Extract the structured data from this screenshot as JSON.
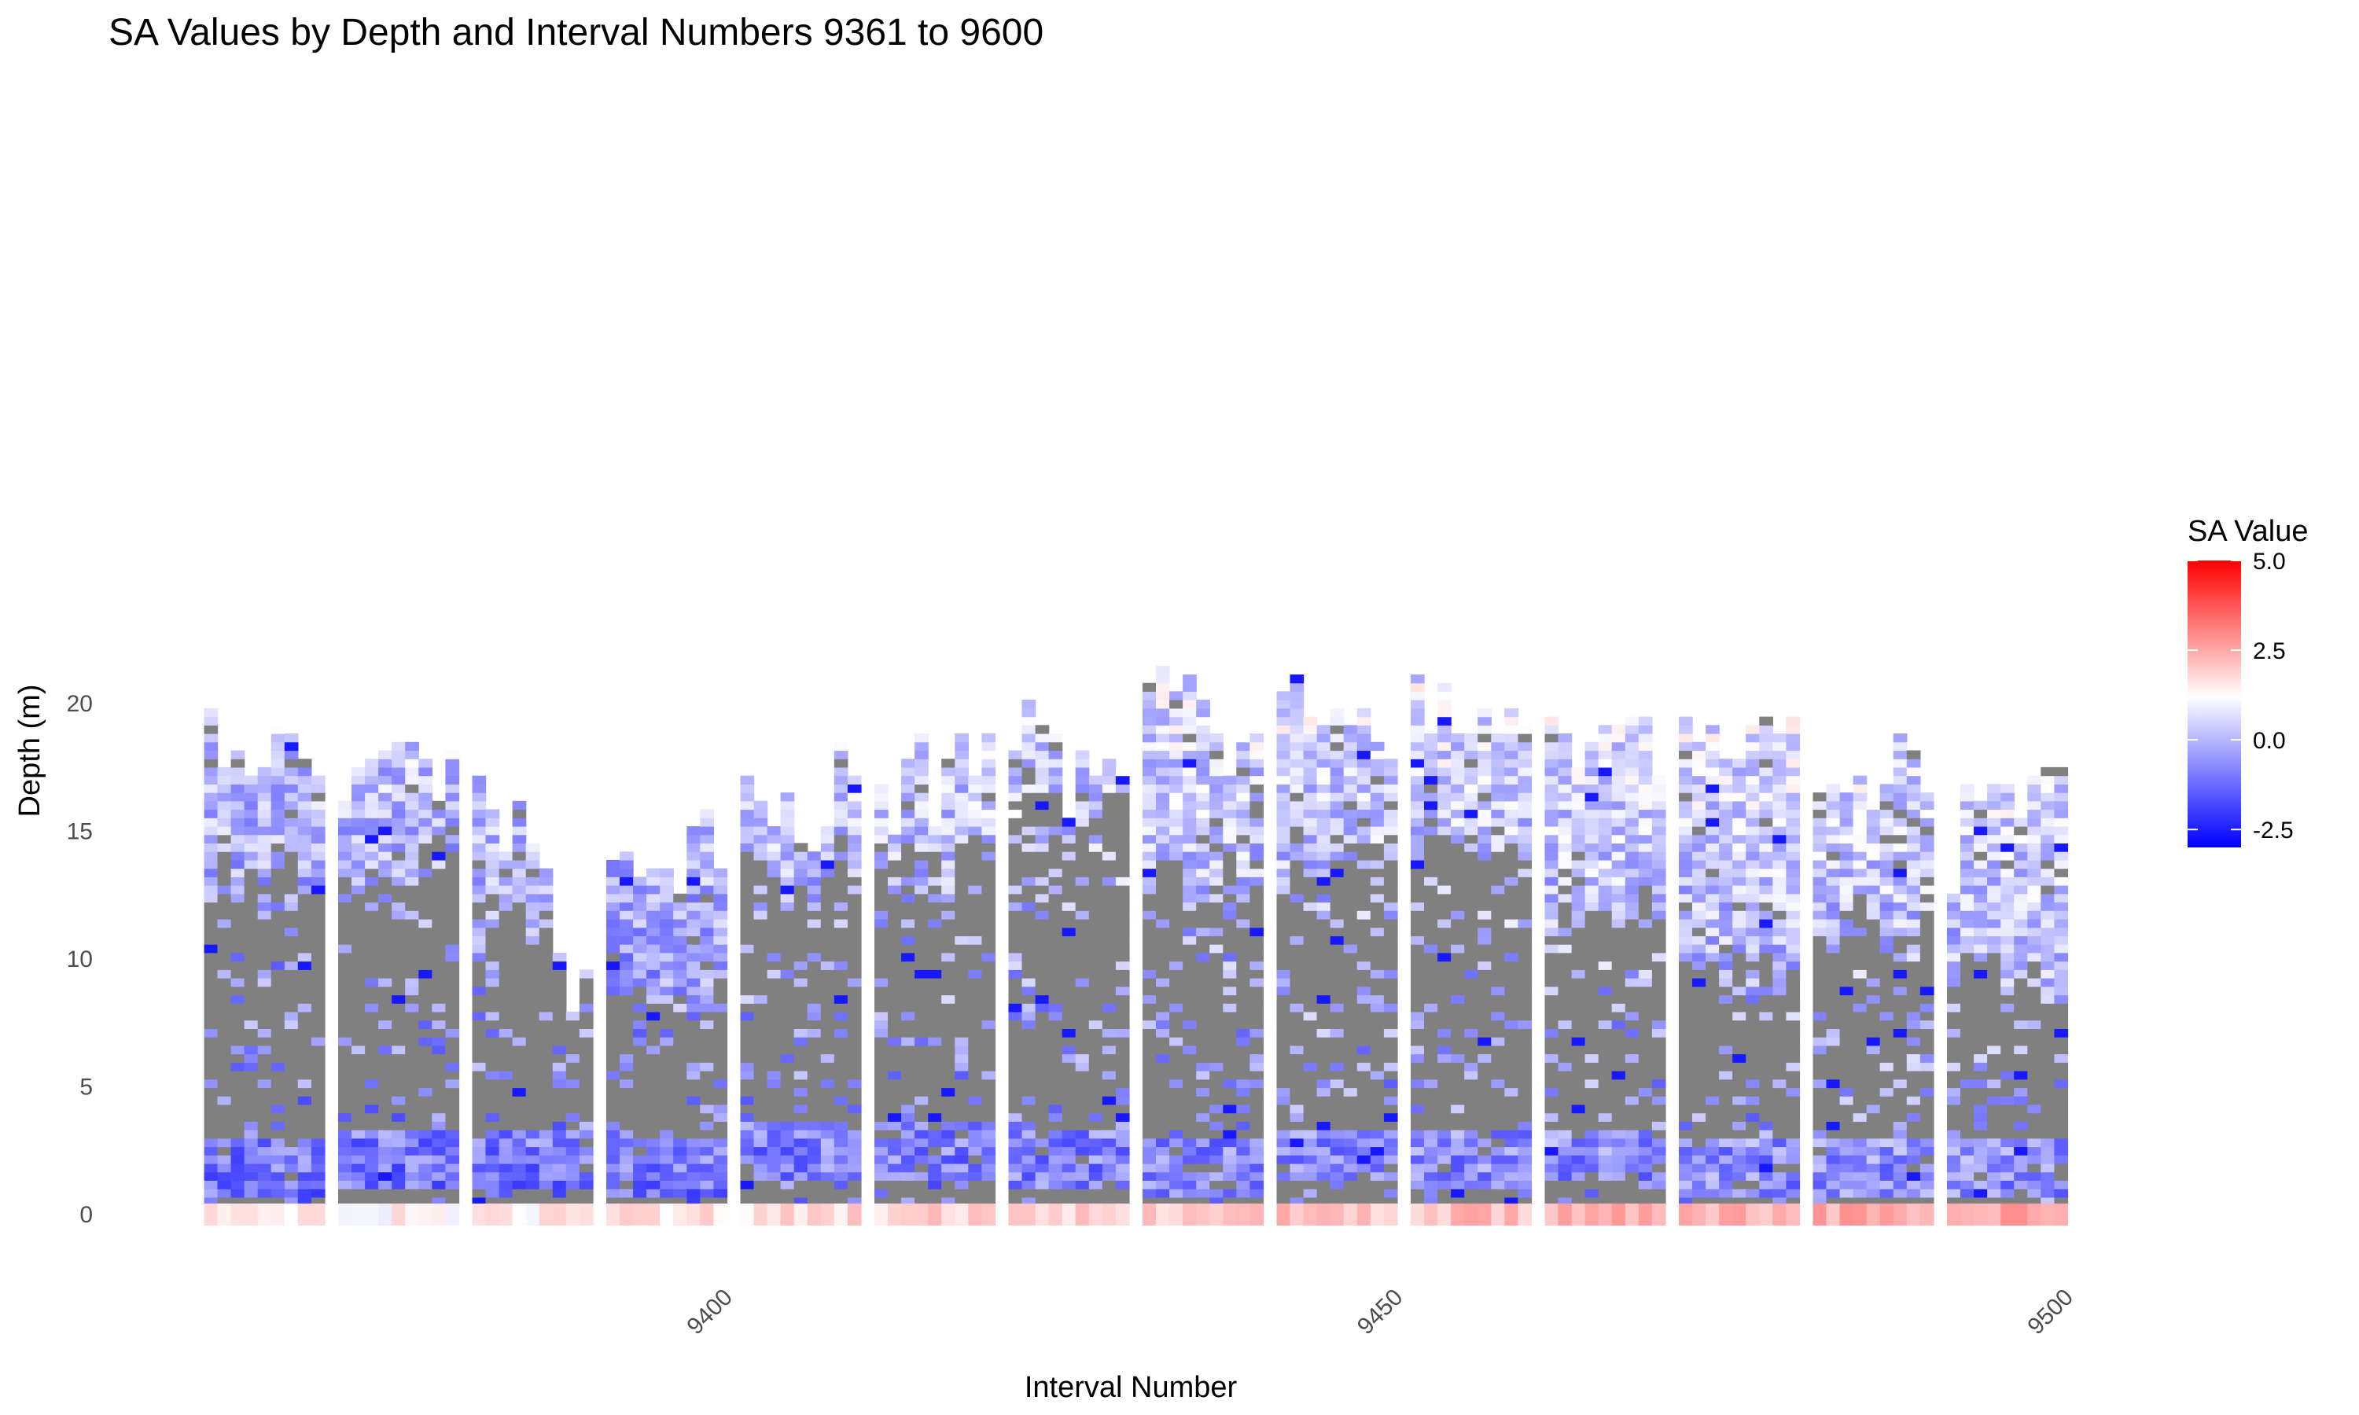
{
  "chart_data": {
    "type": "heatmap",
    "title": "SA Values by Depth and Interval Numbers 9361 to 9600",
    "xlabel": "Interval Number",
    "ylabel": "Depth (m)",
    "x_ticks": [
      9400,
      9450,
      9500
    ],
    "y_ticks": [
      0,
      5,
      10,
      15,
      20
    ],
    "xlim": [
      9361,
      9499
    ],
    "ylim": [
      -0.5,
      21.5
    ],
    "grid": false,
    "na_color": "#808080",
    "legend": {
      "title": "SA Value",
      "position": "right",
      "breaks": [
        5.0,
        2.5,
        0.0,
        -2.5
      ],
      "break_labels": [
        "5.0",
        "2.5",
        "0.0",
        "-2.5"
      ],
      "range": [
        -3,
        5
      ],
      "colors": {
        "low": "#0000ff",
        "mid": "#ffffff",
        "high": "#ff0000",
        "midpoint": 1.2
      }
    },
    "row_height_m": 0.33,
    "segments": [
      {
        "start": 9361,
        "end": 9369,
        "max_depth": [
          19.7,
          17.3,
          18.1,
          16.9,
          17.5,
          19.1,
          18.6,
          17.6,
          16.9
        ]
      },
      {
        "start": 9371,
        "end": 9379,
        "max_depth": [
          16.1,
          17.5,
          17.6,
          18.0,
          18.2,
          18.3,
          17.7,
          16.1,
          18.1
        ]
      },
      {
        "start": 9381,
        "end": 9389,
        "max_depth": [
          17.1,
          15.7,
          14.1,
          16.0,
          14.5,
          13.4,
          10.1,
          7.8,
          9.5
        ]
      },
      {
        "start": 9391,
        "end": 9399,
        "max_depth": [
          13.8,
          14.0,
          13.0,
          13.4,
          13.5,
          12.3,
          15.2,
          15.6,
          13.4
        ]
      },
      {
        "start": 9401,
        "end": 9409,
        "max_depth": [
          17.1,
          15.9,
          15.0,
          16.3,
          14.4,
          14.0,
          14.9,
          18.2,
          17.0
        ]
      },
      {
        "start": 9411,
        "end": 9419,
        "max_depth": [
          16.7,
          14.8,
          17.6,
          18.7,
          15.2,
          17.8,
          18.7,
          17.1,
          18.5
        ]
      },
      {
        "start": 9421,
        "end": 9429,
        "max_depth": [
          18.1,
          20.0,
          18.9,
          18.7,
          15.3,
          18.0,
          16.9,
          17.6,
          17.3
        ]
      },
      {
        "start": 9431,
        "end": 9439,
        "max_depth": [
          20.6,
          21.3,
          20.4,
          21.1,
          20.0,
          18.6,
          17.0,
          18.8,
          18.7
        ]
      },
      {
        "start": 9441,
        "end": 9449,
        "max_depth": [
          20.2,
          21.1,
          19.3,
          19.0,
          19.6,
          18.9,
          19.7,
          18.4,
          17.7
        ]
      },
      {
        "start": 9451,
        "end": 9459,
        "max_depth": [
          21.1,
          18.5,
          20.7,
          18.6,
          18.5,
          19.5,
          18.6,
          19.7,
          18.9
        ]
      },
      {
        "start": 9461,
        "end": 9469,
        "max_depth": [
          19.2,
          18.6,
          17.3,
          18.2,
          18.9,
          19.0,
          19.3,
          19.2,
          17.0
        ]
      },
      {
        "start": 9471,
        "end": 9479,
        "max_depth": [
          19.3,
          18.4,
          19.1,
          17.6,
          17.7,
          18.9,
          19.3,
          18.8,
          19.2
        ]
      },
      {
        "start": 9481,
        "end": 9489,
        "max_depth": [
          16.3,
          16.6,
          16.3,
          17.1,
          16.0,
          16.8,
          18.7,
          17.9,
          16.2
        ]
      },
      {
        "start": 9491,
        "end": 9499,
        "max_depth": [
          12.3,
          16.7,
          16.1,
          16.6,
          16.7,
          15.4,
          16.9,
          17.2,
          17.3
        ]
      }
    ]
  }
}
